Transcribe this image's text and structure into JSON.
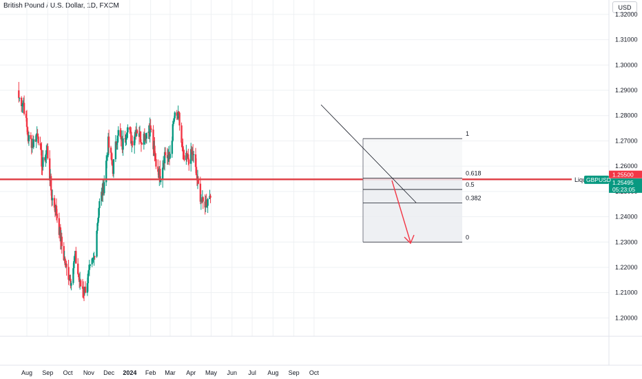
{
  "header": {
    "title": "British Pound / U.S. Dollar, 1D, FXCM",
    "currency_button": "USD"
  },
  "colors": {
    "up": "#089981",
    "down": "#f23645",
    "level": "#e04349",
    "grid": "#eef0f3",
    "text": "#131722",
    "badge_green": "#089981",
    "badge_red": "#f23645"
  },
  "chart_data": {
    "type": "candlestick",
    "title": "British Pound / U.S. Dollar, 1D, FXCM",
    "symbol": "GBPUSD",
    "ylim": [
      1.1922,
      1.3257
    ],
    "y_ticks": [
      "1.32000",
      "1.31000",
      "1.30000",
      "1.29000",
      "1.28000",
      "1.27000",
      "1.26000",
      "1.25000",
      "1.24000",
      "1.23000",
      "1.22000",
      "1.21000",
      "1.20000"
    ],
    "x_ticks": [
      "Aug",
      "Sep",
      "Oct",
      "Nov",
      "Dec",
      "2024",
      "Feb",
      "Mar",
      "Apr",
      "May",
      "Jun",
      "Jul",
      "Aug",
      "Sep",
      "Oct"
    ],
    "approximate_daily_closes": [
      {
        "date": "2023-07-20",
        "close": 1.287
      },
      {
        "date": "2023-07-27",
        "close": 1.285
      },
      {
        "date": "2023-08-03",
        "close": 1.271
      },
      {
        "date": "2023-08-10",
        "close": 1.269
      },
      {
        "date": "2023-08-17",
        "close": 1.2735
      },
      {
        "date": "2023-08-24",
        "close": 1.26
      },
      {
        "date": "2023-08-31",
        "close": 1.267
      },
      {
        "date": "2023-09-07",
        "close": 1.248
      },
      {
        "date": "2023-09-14",
        "close": 1.242
      },
      {
        "date": "2023-09-21",
        "close": 1.23
      },
      {
        "date": "2023-09-28",
        "close": 1.22
      },
      {
        "date": "2023-10-05",
        "close": 1.215
      },
      {
        "date": "2023-10-12",
        "close": 1.224
      },
      {
        "date": "2023-10-19",
        "close": 1.213
      },
      {
        "date": "2023-10-26",
        "close": 1.211
      },
      {
        "date": "2023-11-02",
        "close": 1.218
      },
      {
        "date": "2023-11-09",
        "close": 1.224
      },
      {
        "date": "2023-11-16",
        "close": 1.244
      },
      {
        "date": "2023-11-23",
        "close": 1.252
      },
      {
        "date": "2023-11-30",
        "close": 1.269
      },
      {
        "date": "2023-12-07",
        "close": 1.259
      },
      {
        "date": "2023-12-14",
        "close": 1.274
      },
      {
        "date": "2023-12-21",
        "close": 1.268
      },
      {
        "date": "2023-12-28",
        "close": 1.276
      },
      {
        "date": "2024-01-04",
        "close": 1.27
      },
      {
        "date": "2024-01-11",
        "close": 1.275
      },
      {
        "date": "2024-01-18",
        "close": 1.271
      },
      {
        "date": "2024-01-25",
        "close": 1.273
      },
      {
        "date": "2024-02-01",
        "close": 1.275
      },
      {
        "date": "2024-02-08",
        "close": 1.262
      },
      {
        "date": "2024-02-15",
        "close": 1.256
      },
      {
        "date": "2024-02-22",
        "close": 1.265
      },
      {
        "date": "2024-02-29",
        "close": 1.263
      },
      {
        "date": "2024-03-07",
        "close": 1.279
      },
      {
        "date": "2024-03-14",
        "close": 1.279
      },
      {
        "date": "2024-03-21",
        "close": 1.262
      },
      {
        "date": "2024-03-28",
        "close": 1.263
      },
      {
        "date": "2024-04-04",
        "close": 1.265
      },
      {
        "date": "2024-04-11",
        "close": 1.253
      },
      {
        "date": "2024-04-18",
        "close": 1.245
      },
      {
        "date": "2024-04-25",
        "close": 1.246
      },
      {
        "date": "2024-05-01",
        "close": 1.251
      }
    ],
    "horizontal_level": {
      "price": 1.2548,
      "label": "Liqu"
    },
    "fib_levels": [
      {
        "label": "1",
        "price": 1.2709
      },
      {
        "label": "0.618",
        "price": 1.2553
      },
      {
        "label": "0.5",
        "price": 1.2508
      },
      {
        "label": "0.382",
        "price": 1.2455
      },
      {
        "label": "0",
        "price": 1.23
      }
    ],
    "badges": [
      {
        "label": "1.25500",
        "price": 1.2555,
        "color": "red"
      },
      {
        "label": "GBPUSD",
        "price": 1.2549,
        "color": "green"
      },
      {
        "label": "1.25495",
        "price": 1.2549,
        "color": "green"
      },
      {
        "label": "05:23:05",
        "price": 1.2529,
        "color": "green"
      }
    ]
  }
}
